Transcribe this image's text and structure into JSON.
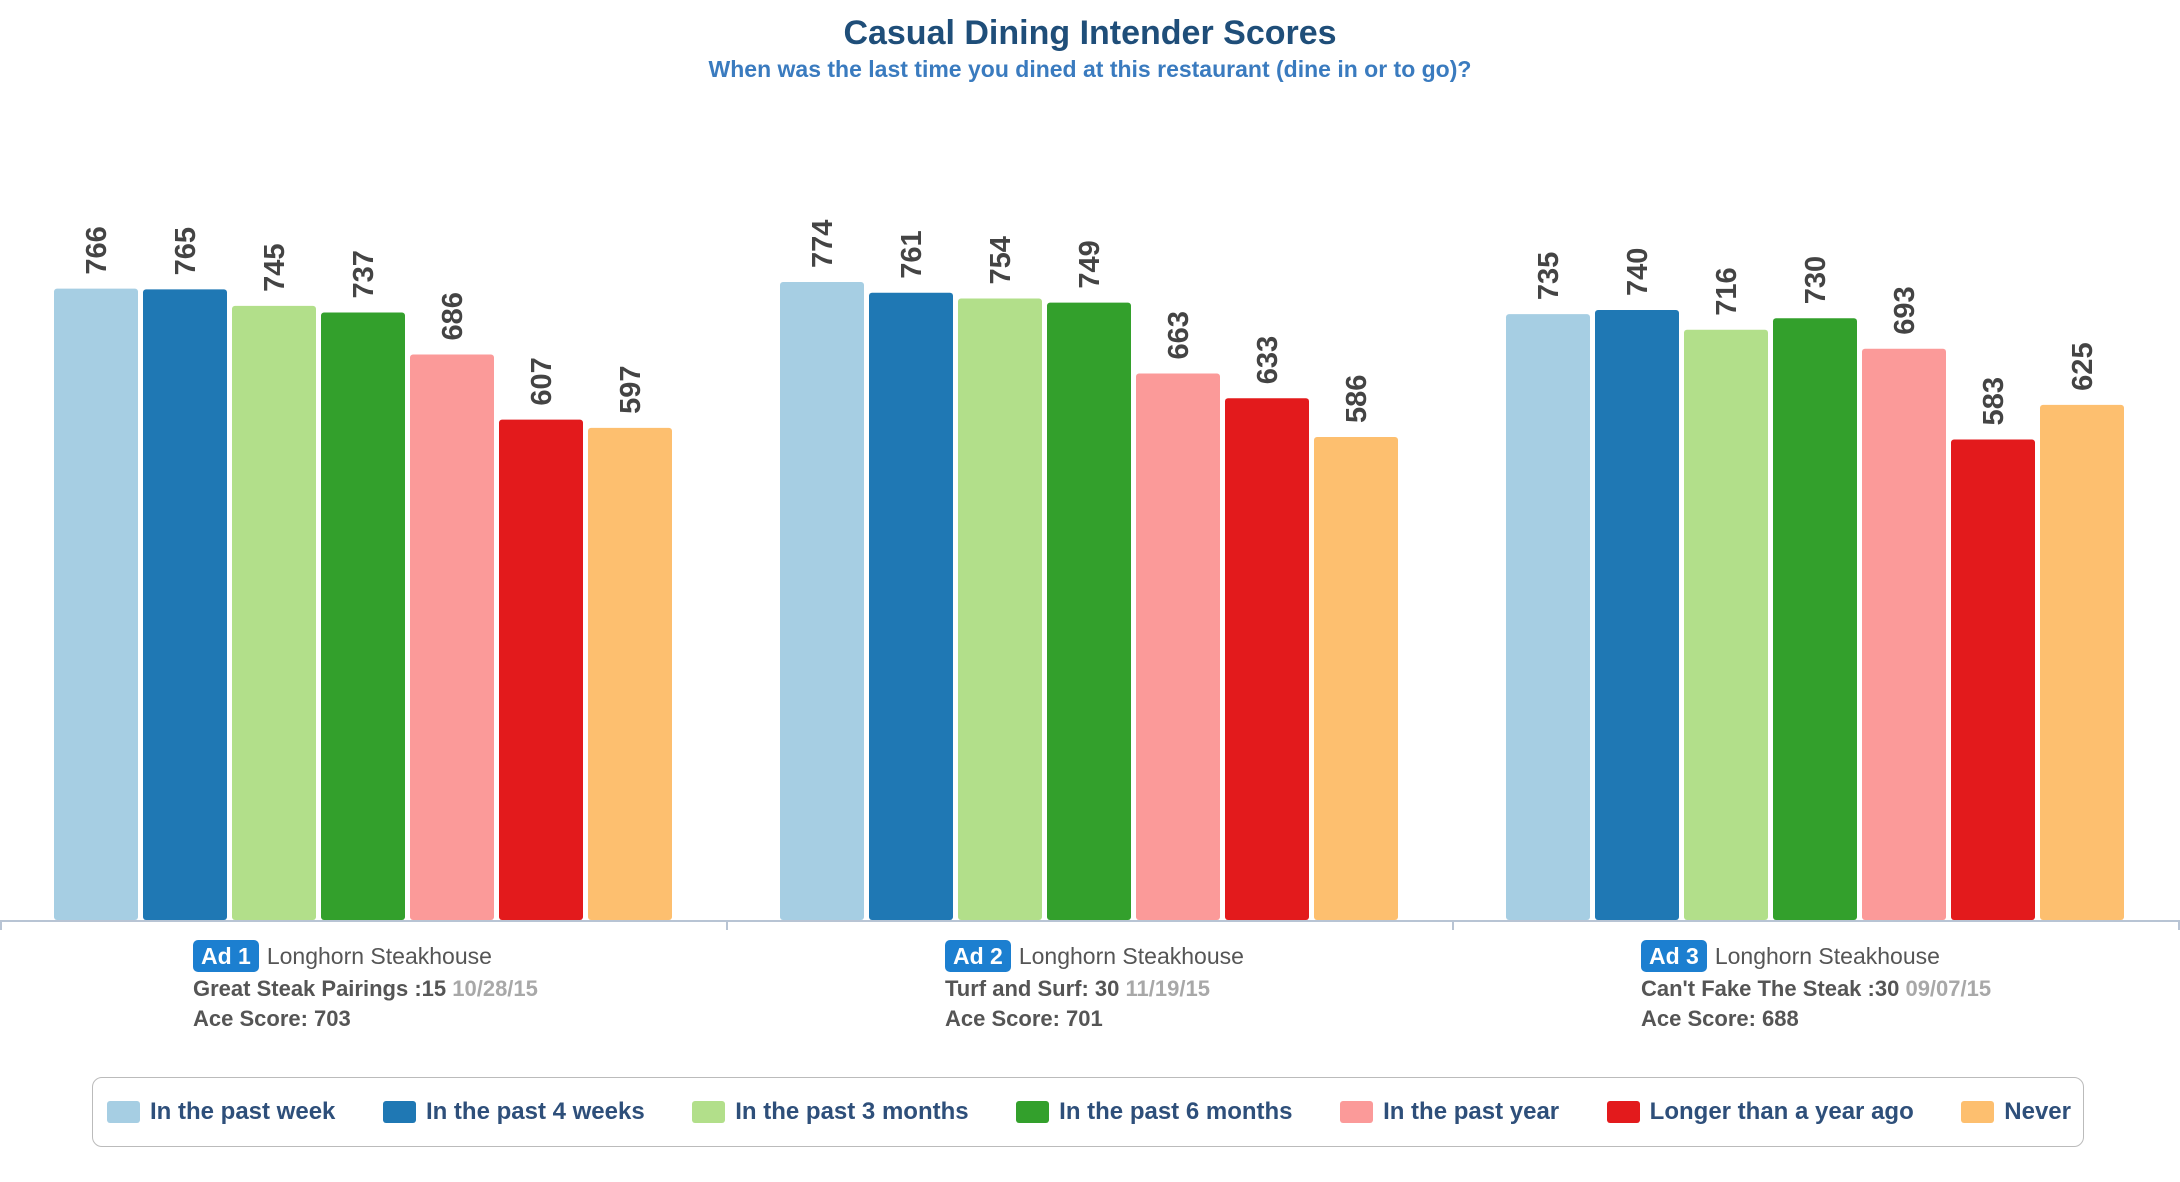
{
  "chart_data": {
    "type": "bar",
    "title": "Casual Dining Intender Scores",
    "subtitle": "When was the last time you dined at this restaurant (dine in or to go)?",
    "ylim": [
      0,
      780
    ],
    "series": [
      {
        "name": "In the past week",
        "color": "#a6cee3"
      },
      {
        "name": "In the past 4 weeks",
        "color": "#1f78b4"
      },
      {
        "name": "In the past 3 months",
        "color": "#b2df8a"
      },
      {
        "name": "In the past 6 months",
        "color": "#33a02c"
      },
      {
        "name": "In the past year",
        "color": "#fb9a99"
      },
      {
        "name": "Longer than a year ago",
        "color": "#e31a1c"
      },
      {
        "name": "Never",
        "color": "#fdbf6f"
      }
    ],
    "groups": [
      {
        "badge": "Ad 1",
        "brand": "Longhorn Steakhouse",
        "ad_title": "Great Steak Pairings :15",
        "date": "10/28/15",
        "ace_score": "Ace Score: 703",
        "values": [
          766,
          765,
          745,
          737,
          686,
          607,
          597
        ]
      },
      {
        "badge": "Ad 2",
        "brand": "Longhorn Steakhouse",
        "ad_title": "Turf and Surf: 30",
        "date": "11/19/15",
        "ace_score": "Ace Score: 701",
        "values": [
          774,
          761,
          754,
          749,
          663,
          633,
          586
        ]
      },
      {
        "badge": "Ad 3",
        "brand": "Longhorn Steakhouse",
        "ad_title": "Can't Fake The Steak :30",
        "date": "09/07/15",
        "ace_score": "Ace Score: 688",
        "values": [
          735,
          740,
          716,
          730,
          693,
          583,
          625
        ]
      }
    ]
  }
}
